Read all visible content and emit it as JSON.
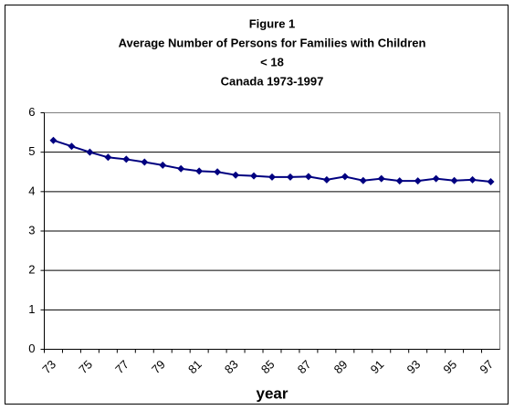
{
  "chart_data": {
    "type": "line",
    "title": [
      "Figure 1",
      "Average Number of Persons for Families with Children",
      "< 18",
      "Canada 1973-1997"
    ],
    "x_label": "year",
    "categories": [
      "73",
      null,
      "75",
      null,
      "77",
      null,
      "79",
      null,
      "81",
      null,
      "83",
      null,
      "85",
      null,
      "87",
      null,
      "89",
      null,
      "91",
      null,
      "93",
      null,
      "95",
      null,
      "97"
    ],
    "values": [
      5.3,
      5.15,
      5.0,
      4.87,
      4.82,
      4.75,
      4.67,
      4.58,
      4.52,
      4.5,
      4.42,
      4.4,
      4.37,
      4.37,
      4.38,
      4.3,
      4.38,
      4.28,
      4.33,
      4.27,
      4.27,
      4.33,
      4.28,
      4.3,
      4.25
    ],
    "color": "#000080",
    "ylim": [
      0,
      6
    ],
    "yticks": [
      0,
      1,
      2,
      3,
      4,
      5,
      6
    ],
    "grid": true
  }
}
